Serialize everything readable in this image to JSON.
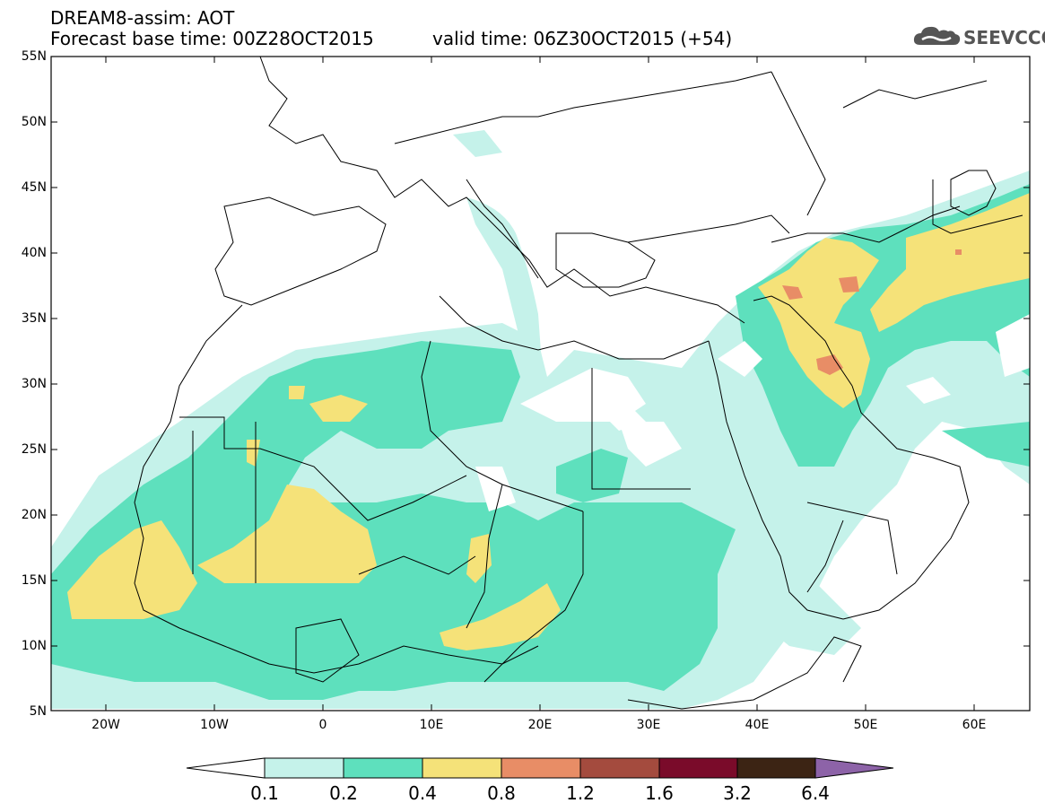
{
  "header": {
    "title_line1": "DREAM8-assim: AOT",
    "title_line2": "Forecast base time: 00Z28OCT2015",
    "title_valid": "valid time: 06Z30OCT2015 (+54)"
  },
  "logo": {
    "text": "SEEVCCC",
    "icon": "cloud-logo-icon"
  },
  "map": {
    "variable": "AOT",
    "lon_range": [
      -25,
      65
    ],
    "lat_range": [
      5,
      55
    ],
    "lat_labels": [
      "55N",
      "50N",
      "45N",
      "40N",
      "35N",
      "30N",
      "25N",
      "20N",
      "15N",
      "10N",
      "5N"
    ],
    "lon_labels": [
      "20W",
      "10W",
      "0",
      "10E",
      "20E",
      "30E",
      "40E",
      "50E",
      "60E"
    ]
  },
  "colorbar": {
    "labels": [
      "0.1",
      "0.2",
      "0.4",
      "0.8",
      "1.2",
      "1.6",
      "3.2",
      "6.4"
    ],
    "colors": {
      "under": "#ffffff",
      "b1": "#c5f2ea",
      "b2": "#5ee0bd",
      "b3": "#f5e279",
      "b4": "#e88d66",
      "b5": "#a44b3e",
      "b6": "#7a0b2a",
      "b7": "#3c2414",
      "over": "#8d63a8"
    }
  }
}
